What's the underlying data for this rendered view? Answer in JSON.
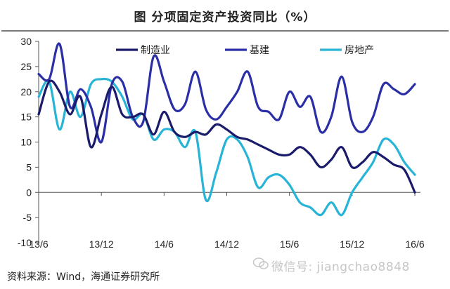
{
  "title": "图    分项固定资产投资同比（%）",
  "source": "资料来源：Wind，海通证券研究所",
  "watermark": "微信号: jiangchao8848",
  "chart_data": {
    "type": "line",
    "x": [
      "13/6",
      "13/7",
      "13/8",
      "13/9",
      "13/10",
      "13/11",
      "13/12",
      "14/1",
      "14/2",
      "14/3",
      "14/4",
      "14/5",
      "14/6",
      "14/7",
      "14/8",
      "14/9",
      "14/10",
      "14/11",
      "14/12",
      "15/1",
      "15/2",
      "15/3",
      "15/4",
      "15/5",
      "15/6",
      "15/7",
      "15/8",
      "15/9",
      "15/10",
      "15/11",
      "15/12",
      "16/1",
      "16/2",
      "16/3",
      "16/4",
      "16/5",
      "16/6"
    ],
    "xticks": [
      "13/6",
      "13/12",
      "14/6",
      "14/12",
      "15/6",
      "15/12",
      "16/6"
    ],
    "ylim": [
      -10,
      30
    ],
    "yticks": [
      30,
      25,
      20,
      15,
      10,
      5,
      0,
      -5,
      -10
    ],
    "legend_position": "top",
    "series": [
      {
        "name": "制造业",
        "color": "#1b1b6b",
        "values": [
          15.5,
          22,
          20,
          15.5,
          19,
          9,
          15.5,
          21,
          15.5,
          15,
          15.5,
          11.5,
          16,
          12,
          11,
          12,
          11.5,
          13.5,
          12.5,
          11,
          10.5,
          9.5,
          8.5,
          7.5,
          7.5,
          9,
          7.5,
          5,
          6.5,
          9,
          5,
          6,
          8,
          7,
          5.5,
          4.5,
          0
        ]
      },
      {
        "name": "基建",
        "color": "#2b2fa5",
        "values": [
          23.5,
          22.5,
          29.5,
          17,
          20.5,
          17,
          10,
          21.5,
          22,
          15,
          14,
          27,
          22,
          16.5,
          17.5,
          24,
          16.5,
          14.5,
          17,
          20,
          24,
          17,
          16,
          14.5,
          20,
          17,
          19,
          12,
          15,
          23,
          14,
          12,
          15,
          21.5,
          20.5,
          19.5,
          21.5
        ]
      },
      {
        "name": "房地产",
        "color": "#27b4d6",
        "values": [
          19,
          22,
          12.5,
          20,
          15,
          21.5,
          22.5,
          22,
          19,
          14.5,
          15.5,
          10.5,
          12.5,
          12,
          9,
          12,
          -1.5,
          4,
          10.5,
          10.5,
          7,
          1,
          3,
          3.5,
          1.5,
          -2,
          -3,
          -4.5,
          -2,
          -4.5,
          0,
          3,
          6,
          10.5,
          9.5,
          6,
          3.5
        ]
      }
    ]
  }
}
